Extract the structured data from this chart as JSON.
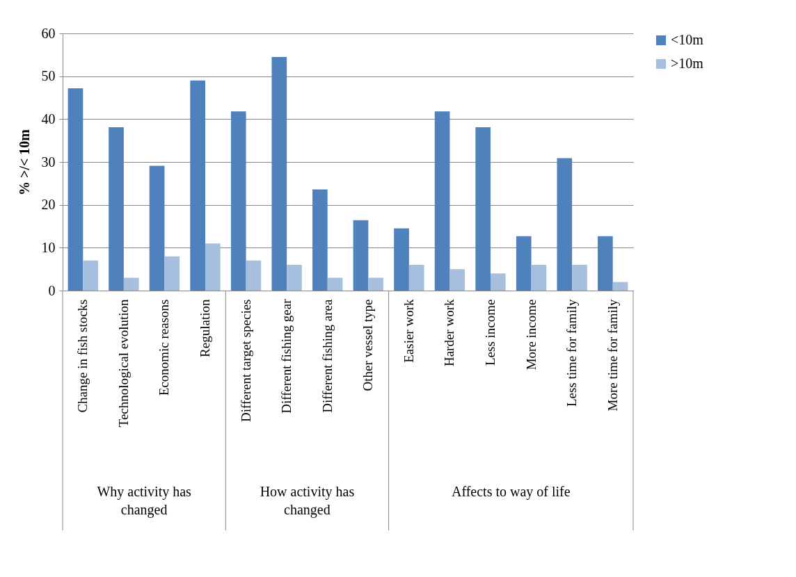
{
  "chart_data": {
    "type": "bar",
    "ylabel": "% >/< 10m",
    "categories": [
      "Change in fish stocks",
      "Technological evolution",
      "Economic reasons",
      "Regulation",
      "Different target species",
      "Different fishing gear",
      "Different fishing area",
      "Other vessel type",
      "Easier work",
      "Harder work",
      "Less income",
      "More income",
      "Less time for family",
      "More time for family"
    ],
    "series": [
      {
        "name": "<10m",
        "color": "#4f81bd",
        "values": [
          47.2,
          38.1,
          29.1,
          49,
          41.8,
          54.5,
          23.6,
          16.4,
          14.5,
          41.8,
          38.1,
          12.7,
          30.9,
          12.7
        ]
      },
      {
        "name": ">10m",
        "color": "#a7bfde",
        "values": [
          7,
          3,
          8,
          11,
          7,
          6,
          3,
          3,
          6,
          5,
          4,
          6,
          6,
          2
        ]
      }
    ],
    "ylim": [
      0,
      60
    ],
    "yticks": [
      0,
      10,
      20,
      30,
      40,
      50,
      60
    ],
    "grid": "y",
    "legend": "right",
    "annotations": [
      "Why activity has changed",
      "How activity has changed",
      "Affects to way of life"
    ]
  }
}
